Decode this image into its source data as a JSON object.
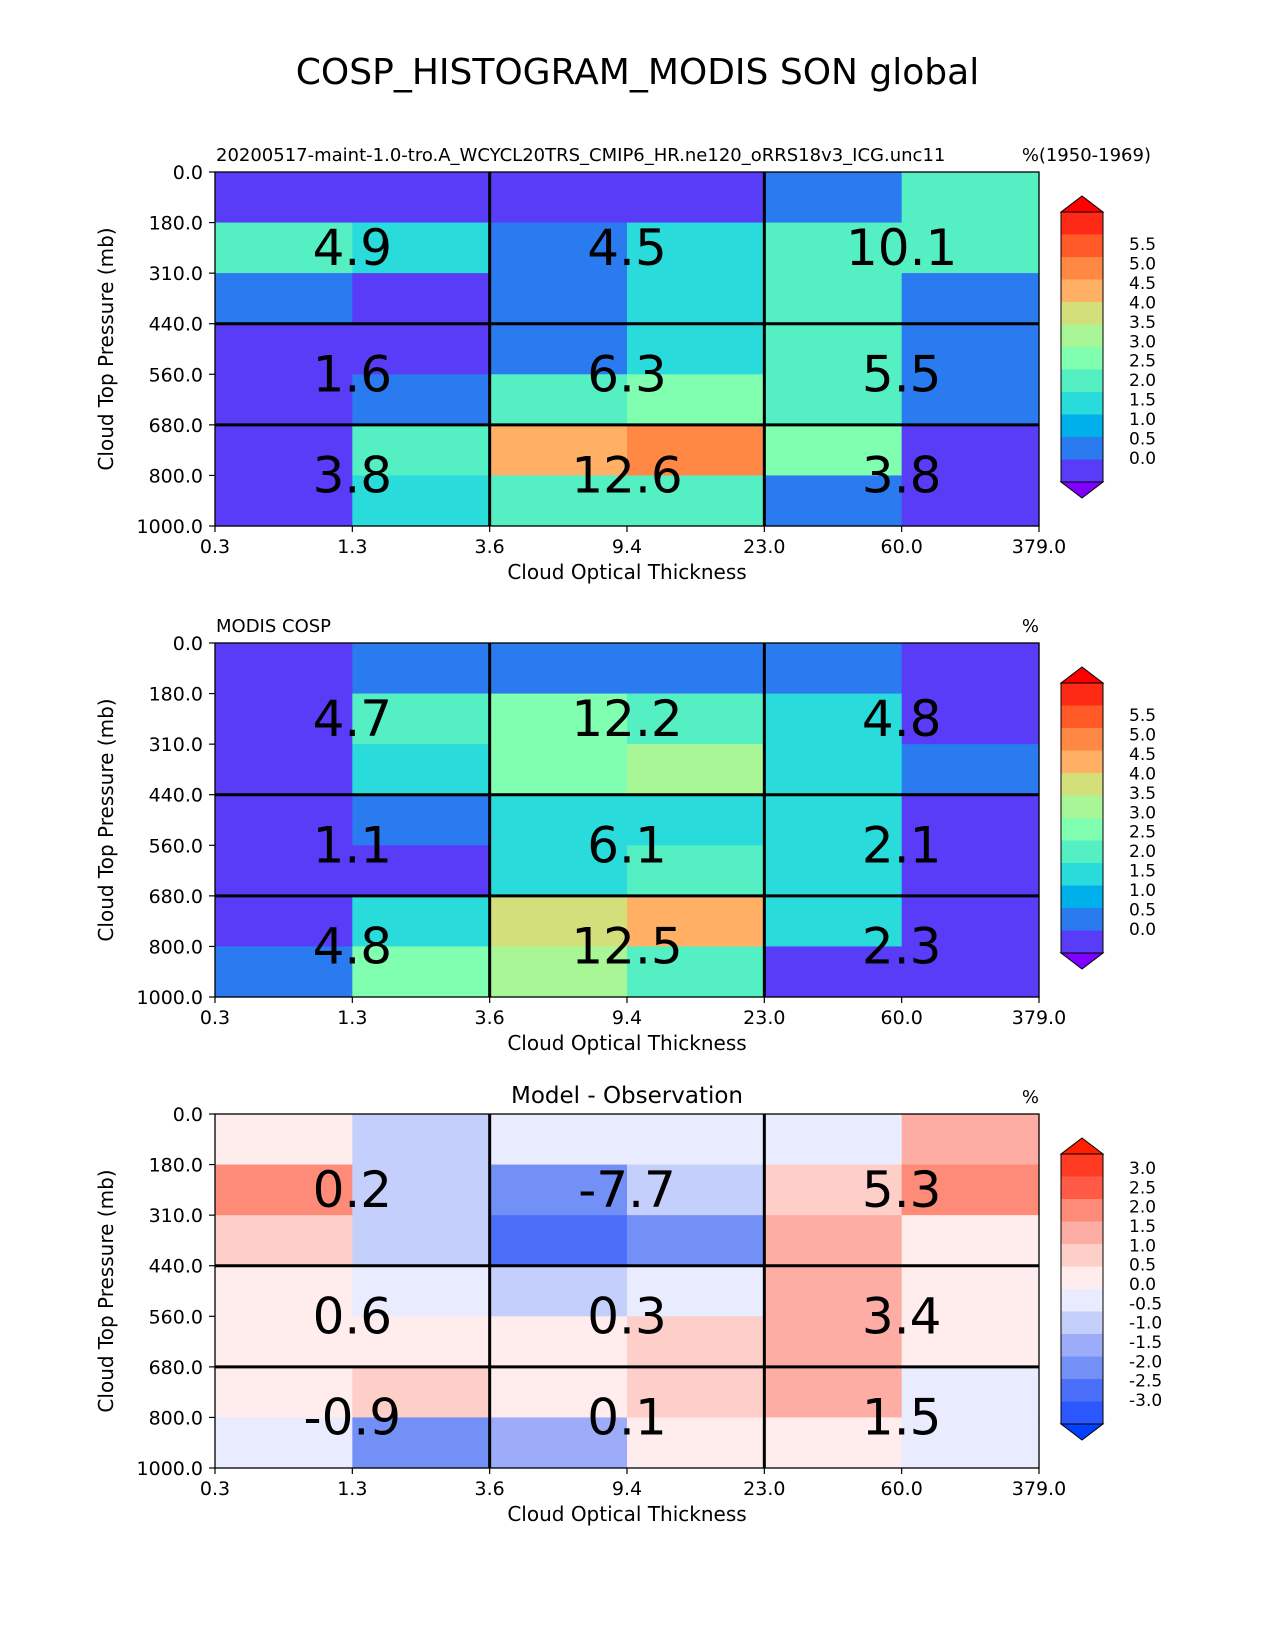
{
  "figure": {
    "title": "COSP_HISTOGRAM_MODIS SON global"
  },
  "colors": {
    "seq_below": "#7f00ff",
    "seq": [
      "#583cf8",
      "#2a7af0",
      "#00b0ea",
      "#2adbdc",
      "#54f0c4",
      "#80ffb0",
      "#a9f696",
      "#d2df7a",
      "#ffb065",
      "#ff8844",
      "#ff5a28",
      "#ff2a16"
    ],
    "seq_above": "#ff0000",
    "div_below": "#0042ff",
    "div": [
      "#2c57ff",
      "#4c6ff9",
      "#7390f7",
      "#9cacf9",
      "#c4cffc",
      "#e9ecfe",
      "#ffeded",
      "#fdcfc8",
      "#fdada3",
      "#fd8b78",
      "#ff5a45",
      "#ff3a22"
    ],
    "div_above": "#ff2000"
  },
  "chart_data": [
    {
      "type": "heatmap",
      "title_left": "20200517-maint-1.0-tro.A_WCYCL20TRS_CMIP6_HR.ne120_oRRS18v3_ICG.unc11",
      "title_center": "",
      "title_right": "%",
      "title_right_extra": "(1950-1969)",
      "xlabel": "Cloud Optical Thickness",
      "ylabel": "Cloud Top Pressure (mb)",
      "xticks": [
        "0.3",
        "1.3",
        "3.6",
        "9.4",
        "23.0",
        "60.0",
        "379.0"
      ],
      "yticks": [
        "0.0",
        "180.0",
        "310.0",
        "440.0",
        "560.0",
        "680.0",
        "800.0",
        "1000.0"
      ],
      "colormap": "seq",
      "levels": [
        -0.25,
        0.25,
        0.75,
        1.25,
        1.75,
        2.25,
        2.75,
        3.25,
        3.75,
        4.25,
        4.75,
        5.25,
        5.75
      ],
      "colorbar_ticks": [
        "0.0",
        "0.5",
        "1.0",
        "1.5",
        "2.0",
        "2.5",
        "3.0",
        "3.5",
        "4.0",
        "4.5",
        "5.0",
        "5.5"
      ],
      "values": [
        [
          0.0,
          0.0,
          0.0,
          0.0,
          0.5,
          1.95
        ],
        [
          2.2,
          1.3,
          0.6,
          1.3,
          2.2,
          2.2
        ],
        [
          0.7,
          0.0,
          0.6,
          1.3,
          2.2,
          0.7
        ],
        [
          0.0,
          0.0,
          0.7,
          1.3,
          1.8,
          0.7
        ],
        [
          0.0,
          0.7,
          1.8,
          2.7,
          2.2,
          0.7
        ],
        [
          0.0,
          1.8,
          4.2,
          4.7,
          2.7,
          0.0
        ],
        [
          0.0,
          1.3,
          1.8,
          1.8,
          0.7,
          0.0
        ]
      ],
      "group_values": [
        [
          "4.9",
          "4.5",
          "10.1"
        ],
        [
          "1.6",
          "6.3",
          "5.5"
        ],
        [
          "3.8",
          "12.6",
          "3.8"
        ]
      ]
    },
    {
      "type": "heatmap",
      "title_left": "MODIS COSP",
      "title_center": "",
      "title_right": "%",
      "title_right_extra": "",
      "xlabel": "Cloud Optical Thickness",
      "ylabel": "Cloud Top Pressure (mb)",
      "xticks": [
        "0.3",
        "1.3",
        "3.6",
        "9.4",
        "23.0",
        "60.0",
        "379.0"
      ],
      "yticks": [
        "0.0",
        "180.0",
        "310.0",
        "440.0",
        "560.0",
        "680.0",
        "800.0",
        "1000.0"
      ],
      "colormap": "seq",
      "levels": [
        -0.25,
        0.25,
        0.75,
        1.25,
        1.75,
        2.25,
        2.75,
        3.25,
        3.75,
        4.25,
        4.75,
        5.25,
        5.75
      ],
      "colorbar_ticks": [
        "0.0",
        "0.5",
        "1.0",
        "1.5",
        "2.0",
        "2.5",
        "3.0",
        "3.5",
        "4.0",
        "4.5",
        "5.0",
        "5.5"
      ],
      "values": [
        [
          0.0,
          0.6,
          0.6,
          0.6,
          0.6,
          0.0
        ],
        [
          0.0,
          1.8,
          2.7,
          1.8,
          1.3,
          0.0
        ],
        [
          0.0,
          1.3,
          2.7,
          3.2,
          1.3,
          0.6
        ],
        [
          0.0,
          0.6,
          1.3,
          1.3,
          1.3,
          0.0
        ],
        [
          0.0,
          0.0,
          1.3,
          1.8,
          1.3,
          0.0
        ],
        [
          0.0,
          1.3,
          3.7,
          4.2,
          1.3,
          0.0
        ],
        [
          0.6,
          2.7,
          3.2,
          1.8,
          0.0,
          0.0
        ]
      ],
      "group_values": [
        [
          "4.7",
          "12.2",
          "4.8"
        ],
        [
          "1.1",
          "6.1",
          "2.1"
        ],
        [
          "4.8",
          "12.5",
          "2.3"
        ]
      ]
    },
    {
      "type": "heatmap",
      "title_left": "",
      "title_center": "Model - Observation",
      "title_right": "%",
      "title_right_extra": "",
      "xlabel": "Cloud Optical Thickness",
      "ylabel": "Cloud Top Pressure (mb)",
      "xticks": [
        "0.3",
        "1.3",
        "3.6",
        "9.4",
        "23.0",
        "60.0",
        "379.0"
      ],
      "yticks": [
        "0.0",
        "180.0",
        "310.0",
        "440.0",
        "560.0",
        "680.0",
        "800.0",
        "1000.0"
      ],
      "colormap": "div",
      "levels": [
        -3.0,
        -2.5,
        -2.0,
        -1.5,
        -1.0,
        -0.5,
        0.0,
        0.5,
        1.0,
        1.5,
        2.0,
        2.5,
        3.0
      ],
      "colorbar_ticks": [
        "3.0",
        "2.5",
        "2.0",
        "1.5",
        "1.0",
        "0.5",
        "0.0",
        "-0.5",
        "-1.0",
        "-1.5",
        "-2.0",
        "-2.5",
        "-3.0"
      ],
      "values": [
        [
          0.2,
          -0.7,
          -0.2,
          -0.2,
          -0.2,
          1.2
        ],
        [
          1.7,
          -0.7,
          -1.7,
          -0.7,
          0.7,
          1.7
        ],
        [
          0.7,
          -0.7,
          -2.3,
          -1.7,
          1.2,
          0.2
        ],
        [
          0.2,
          -0.2,
          -0.7,
          -0.2,
          1.2,
          0.2
        ],
        [
          0.2,
          0.2,
          0.2,
          0.7,
          1.2,
          0.2
        ],
        [
          0.2,
          0.7,
          0.2,
          0.7,
          1.2,
          -0.2
        ],
        [
          -0.2,
          -1.7,
          -1.2,
          0.2,
          0.2,
          -0.2
        ]
      ],
      "group_values": [
        [
          "0.2",
          "-7.7",
          "5.3"
        ],
        [
          "0.6",
          "0.3",
          "3.4"
        ],
        [
          "-0.9",
          "0.1",
          "1.5"
        ]
      ]
    }
  ]
}
